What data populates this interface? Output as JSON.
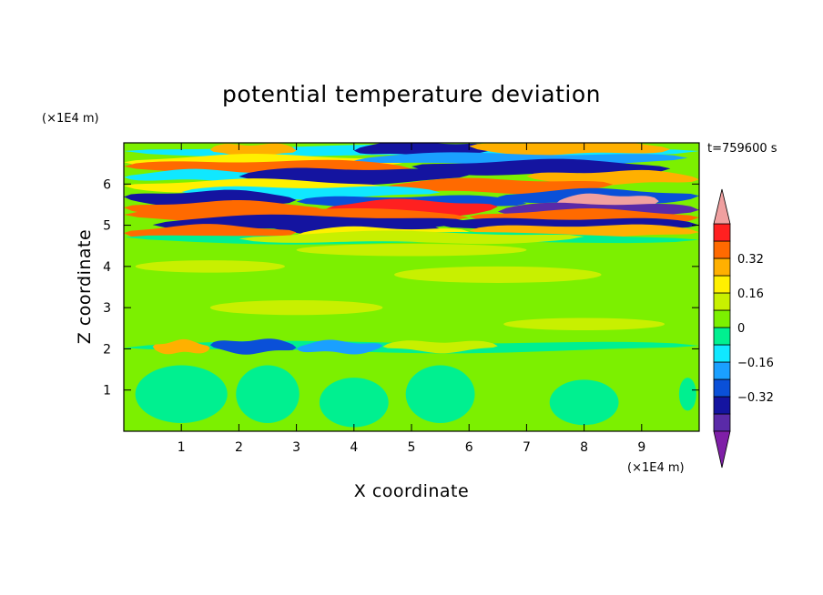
{
  "chart_data": {
    "type": "heatmap",
    "title": "potential temperature deviation",
    "xlabel": "X coordinate",
    "ylabel": "Z coordinate",
    "x_unit": "(×1E4 m)",
    "y_unit": "(×1E4 m)",
    "time_label": "t=759600 s",
    "xlim": [
      0,
      10
    ],
    "ylim": [
      0,
      7
    ],
    "x_ticks": [
      1,
      2,
      3,
      4,
      5,
      6,
      7,
      8,
      9
    ],
    "y_ticks": [
      1,
      2,
      3,
      4,
      5,
      6
    ],
    "x_tick_labels": [
      "1",
      "2",
      "3",
      "4",
      "5",
      "6",
      "7",
      "8",
      "9"
    ],
    "y_tick_labels": [
      "1",
      "2",
      "3",
      "4",
      "5",
      "6"
    ],
    "colorbar": {
      "levels": [
        -0.48,
        -0.4,
        -0.32,
        -0.24,
        -0.16,
        -0.08,
        0,
        0.08,
        0.16,
        0.24,
        0.32,
        0.4,
        0.48
      ],
      "tick_values": [
        -0.32,
        -0.16,
        0,
        0.16,
        0.32
      ],
      "tick_labels": [
        "−0.32",
        "−0.16",
        "0",
        "0.16",
        "0.32"
      ],
      "colors": [
        "#7f1fa7",
        "#5a2aa8",
        "#1414a0",
        "#0a50d8",
        "#1aa0ff",
        "#10e8ff",
        "#00f090",
        "#7cf000",
        "#c8f000",
        "#fff000",
        "#ffb000",
        "#ff6a00",
        "#ff2020",
        "#f0a0a0"
      ]
    },
    "background_value": 0.04,
    "bands": [
      {
        "x": [
          0.0,
          10.0
        ],
        "z": 6.8,
        "v": -0.1
      },
      {
        "x": [
          4.0,
          6.5
        ],
        "z": 6.85,
        "v": -0.35
      },
      {
        "x": [
          1.5,
          3.0
        ],
        "z": 6.82,
        "v": 0.25
      },
      {
        "x": [
          6.0,
          9.5
        ],
        "z": 6.88,
        "v": 0.3
      },
      {
        "x": [
          0.0,
          5.0
        ],
        "z": 6.55,
        "v": 0.2
      },
      {
        "x": [
          4.0,
          9.8
        ],
        "z": 6.6,
        "v": -0.2
      },
      {
        "x": [
          0.0,
          5.0
        ],
        "z": 6.4,
        "v": 0.32
      },
      {
        "x": [
          5.0,
          9.5
        ],
        "z": 6.4,
        "v": -0.36
      },
      {
        "x": [
          0.0,
          3.0
        ],
        "z": 6.2,
        "v": -0.12
      },
      {
        "x": [
          2.0,
          6.0
        ],
        "z": 6.2,
        "v": -0.4
      },
      {
        "x": [
          7.0,
          10.0
        ],
        "z": 6.15,
        "v": 0.3
      },
      {
        "x": [
          0.0,
          4.5
        ],
        "z": 5.95,
        "v": 0.2
      },
      {
        "x": [
          4.5,
          8.5
        ],
        "z": 5.95,
        "v": 0.32
      },
      {
        "x": [
          1.0,
          5.5
        ],
        "z": 5.8,
        "v": -0.15
      },
      {
        "x": [
          0.0,
          3.0
        ],
        "z": 5.65,
        "v": -0.38
      },
      {
        "x": [
          6.5,
          10.0
        ],
        "z": 5.7,
        "v": -0.3
      },
      {
        "x": [
          7.5,
          9.3
        ],
        "z": 5.55,
        "v": 0.5
      },
      {
        "x": [
          3.0,
          7.0
        ],
        "z": 5.55,
        "v": -0.3
      },
      {
        "x": [
          0.0,
          3.5
        ],
        "z": 5.4,
        "v": 0.35
      },
      {
        "x": [
          3.5,
          6.5
        ],
        "z": 5.42,
        "v": 0.42
      },
      {
        "x": [
          6.5,
          10.0
        ],
        "z": 5.35,
        "v": -0.42
      },
      {
        "x": [
          0.0,
          6.0
        ],
        "z": 5.22,
        "v": 0.32
      },
      {
        "x": [
          6.0,
          10.0
        ],
        "z": 5.2,
        "v": 0.34
      },
      {
        "x": [
          0.5,
          6.0
        ],
        "z": 5.05,
        "v": -0.38
      },
      {
        "x": [
          5.5,
          10.0
        ],
        "z": 5.0,
        "v": -0.34
      },
      {
        "x": [
          2.5,
          5.5
        ],
        "z": 4.95,
        "v": -0.4
      },
      {
        "x": [
          0.0,
          3.0
        ],
        "z": 4.82,
        "v": 0.36
      },
      {
        "x": [
          3.0,
          6.0
        ],
        "z": 4.8,
        "v": 0.2
      },
      {
        "x": [
          6.0,
          10.0
        ],
        "z": 4.85,
        "v": 0.25
      },
      {
        "x": [
          0.0,
          10.0
        ],
        "z": 4.68,
        "v": -0.05
      },
      {
        "x": [
          2.0,
          8.0
        ],
        "z": 4.7,
        "v": 0.12
      },
      {
        "x": [
          0.0,
          10.0
        ],
        "z": 2.05,
        "v": -0.06
      },
      {
        "x": [
          1.5,
          3.0
        ],
        "z": 2.06,
        "v": -0.3
      },
      {
        "x": [
          0.5,
          1.5
        ],
        "z": 2.04,
        "v": 0.25
      },
      {
        "x": [
          3.0,
          4.5
        ],
        "z": 2.04,
        "v": -0.2
      },
      {
        "x": [
          4.5,
          6.5
        ],
        "z": 2.06,
        "v": 0.1
      }
    ],
    "blobs": [
      {
        "x": 1.0,
        "z": 0.9,
        "rx": 0.8,
        "rz": 0.7,
        "v": -0.04
      },
      {
        "x": 2.5,
        "z": 0.9,
        "rx": 0.55,
        "rz": 0.7,
        "v": -0.04
      },
      {
        "x": 4.0,
        "z": 0.7,
        "rx": 0.6,
        "rz": 0.6,
        "v": -0.04
      },
      {
        "x": 5.5,
        "z": 0.9,
        "rx": 0.6,
        "rz": 0.7,
        "v": -0.04
      },
      {
        "x": 8.0,
        "z": 0.7,
        "rx": 0.6,
        "rz": 0.55,
        "v": -0.04
      },
      {
        "x": 9.8,
        "z": 0.9,
        "rx": 0.15,
        "rz": 0.4,
        "v": -0.04
      },
      {
        "x": 3.0,
        "z": 3.0,
        "rx": 1.5,
        "rz": 0.18,
        "v": 0.1
      },
      {
        "x": 6.5,
        "z": 3.8,
        "rx": 1.8,
        "rz": 0.2,
        "v": 0.1
      },
      {
        "x": 5.0,
        "z": 4.4,
        "rx": 2.0,
        "rz": 0.15,
        "v": 0.1
      },
      {
        "x": 8.0,
        "z": 2.6,
        "rx": 1.4,
        "rz": 0.15,
        "v": 0.1
      },
      {
        "x": 1.5,
        "z": 4.0,
        "rx": 1.3,
        "rz": 0.15,
        "v": 0.1
      }
    ]
  }
}
